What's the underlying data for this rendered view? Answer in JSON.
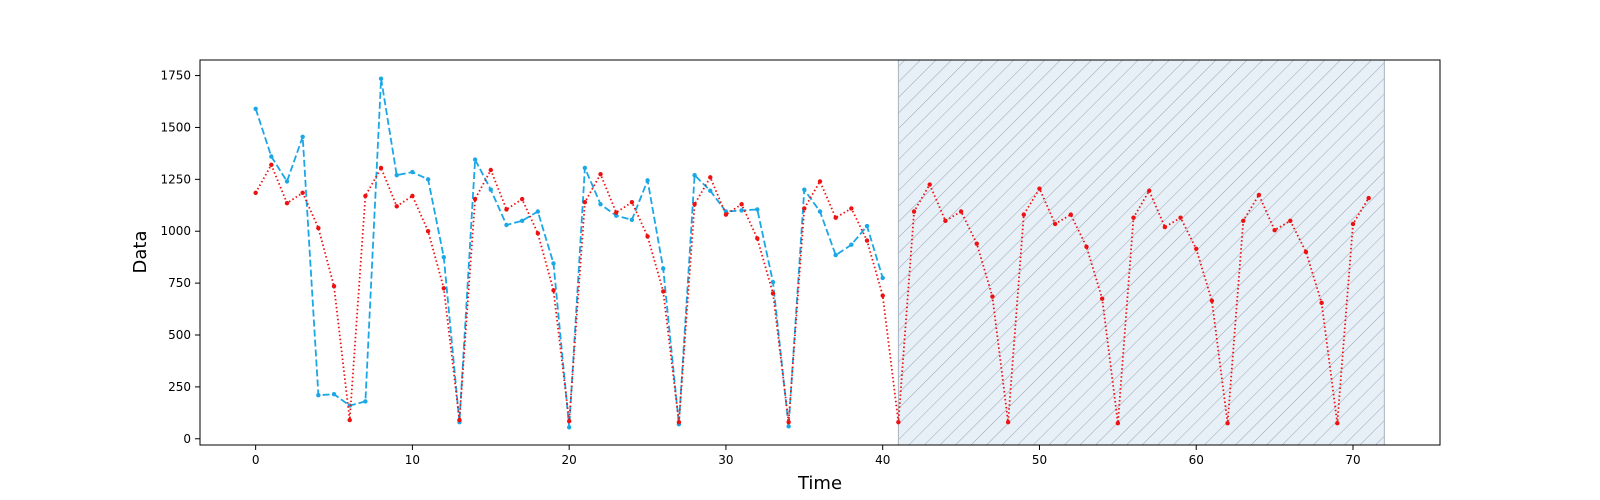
{
  "chart_data": {
    "type": "line",
    "xlabel": "Time",
    "ylabel": "Data",
    "xlim": [
      -3.55,
      75.55
    ],
    "ylim": [
      -30,
      1825
    ],
    "xticks": [
      0,
      10,
      20,
      30,
      40,
      50,
      60,
      70
    ],
    "yticks": [
      0,
      250,
      500,
      750,
      1000,
      1250,
      1500,
      1750
    ],
    "grid": false,
    "legend": "none",
    "shaded_region": {
      "x_start": 41,
      "x_end": 72,
      "fill": "#e8f0f7",
      "hatch": "#9aa4b4",
      "edge": "#aab2bd"
    },
    "series": [
      {
        "style": "dashed",
        "color": "#1ba7e6",
        "x": [
          0,
          1,
          2,
          3,
          4,
          5,
          6,
          7,
          8,
          9,
          10,
          11,
          12,
          13,
          14,
          15,
          16,
          17,
          18,
          19,
          20,
          21,
          22,
          23,
          24,
          25,
          26,
          27,
          28,
          29,
          30,
          31,
          32,
          33,
          34,
          35,
          36,
          37,
          38,
          39,
          40
        ],
        "values": [
          1590,
          1360,
          1240,
          1455,
          210,
          215,
          160,
          180,
          1735,
          1270,
          1285,
          1250,
          875,
          80,
          1345,
          1200,
          1030,
          1050,
          1095,
          845,
          55,
          1305,
          1130,
          1075,
          1055,
          1245,
          820,
          70,
          1270,
          1195,
          1095,
          1100,
          1105,
          755,
          60,
          1200,
          1095,
          885,
          935,
          1025,
          775
        ]
      },
      {
        "style": "dotted",
        "color": "#ee1111",
        "x": [
          0,
          1,
          2,
          3,
          4,
          5,
          6,
          7,
          8,
          9,
          10,
          11,
          12,
          13,
          14,
          15,
          16,
          17,
          18,
          19,
          20,
          21,
          22,
          23,
          24,
          25,
          26,
          27,
          28,
          29,
          30,
          31,
          32,
          33,
          34,
          35,
          36,
          37,
          38,
          39,
          40,
          41,
          42,
          43,
          44,
          45,
          46,
          47,
          48,
          49,
          50,
          51,
          52,
          53,
          54,
          55,
          56,
          57,
          58,
          59,
          60,
          61,
          62,
          63,
          64,
          65,
          66,
          67,
          68,
          69,
          70,
          71
        ],
        "values": [
          1185,
          1320,
          1135,
          1185,
          1015,
          735,
          90,
          1170,
          1305,
          1120,
          1170,
          1000,
          725,
          90,
          1155,
          1295,
          1105,
          1155,
          990,
          715,
          85,
          1140,
          1275,
          1090,
          1140,
          975,
          710,
          80,
          1130,
          1260,
          1080,
          1130,
          965,
          700,
          80,
          1110,
          1240,
          1065,
          1110,
          955,
          690,
          80,
          1095,
          1225,
          1050,
          1095,
          940,
          685,
          80,
          1080,
          1205,
          1035,
          1080,
          925,
          675,
          75,
          1065,
          1195,
          1020,
          1065,
          915,
          665,
          75,
          1050,
          1175,
          1005,
          1050,
          900,
          655,
          75,
          1035,
          1160
        ]
      }
    ]
  }
}
